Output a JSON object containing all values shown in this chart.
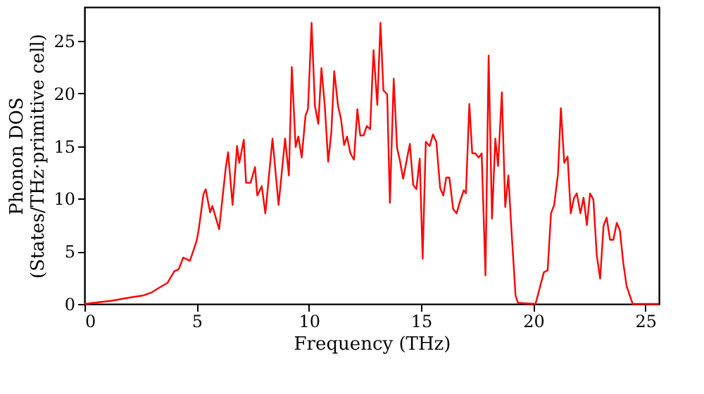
{
  "chart_data": {
    "type": "line",
    "xlabel": "Frequency (THz)",
    "ylabel": "Phonon DOS\n(States/THz·primitive cell)",
    "x": [
      0,
      1.2,
      2.0,
      2.6,
      3.0,
      3.3,
      3.7,
      4.0,
      4.2,
      4.4,
      4.7,
      5.0,
      5.1,
      5.3,
      5.4,
      5.6,
      5.7,
      6.0,
      6.3,
      6.4,
      6.6,
      6.8,
      6.9,
      7.1,
      7.2,
      7.4,
      7.6,
      7.7,
      7.9,
      8.06,
      8.38,
      8.65,
      8.94,
      9.11,
      9.24,
      9.41,
      9.53,
      9.68,
      9.85,
      9.96,
      10.12,
      10.27,
      10.42,
      10.56,
      10.71,
      10.86,
      11.0,
      11.13,
      11.3,
      11.43,
      11.57,
      11.7,
      11.85,
      12.01,
      12.16,
      12.29,
      12.44,
      12.58,
      12.73,
      12.88,
      13.05,
      13.19,
      13.32,
      13.49,
      13.61,
      13.78,
      13.93,
      14.05,
      14.2,
      14.5,
      14.65,
      14.79,
      14.94,
      15.07,
      15.21,
      15.38,
      15.53,
      15.68,
      15.85,
      15.99,
      16.12,
      16.26,
      16.43,
      16.58,
      16.73,
      16.9,
      17.0,
      17.15,
      17.28,
      17.42,
      17.57,
      17.7,
      17.87,
      18.01,
      18.16,
      18.31,
      18.43,
      18.6,
      18.75,
      18.89,
      19.04,
      19.21,
      19.32,
      20.1,
      20.47,
      20.64,
      20.79,
      20.93,
      21.1,
      21.23,
      21.38,
      21.53,
      21.67,
      21.82,
      21.94,
      22.1,
      22.24,
      22.39,
      22.53,
      22.68,
      22.83,
      22.98,
      23.13,
      23.27,
      23.42,
      23.57,
      23.72,
      23.86,
      24.01,
      24.16,
      24.43,
      25.6
    ],
    "series": [
      {
        "color": "#ff0000",
        "values": [
          0,
          0.3,
          0.6,
          0.8,
          1.1,
          1.5,
          2.0,
          3.1,
          3.3,
          4.4,
          4.1,
          6.0,
          7.2,
          10.4,
          10.9,
          8.7,
          9.3,
          7.1,
          13.0,
          14.4,
          9.4,
          15.0,
          13.4,
          15.6,
          11.5,
          11.5,
          13.0,
          10.3,
          11.2,
          8.6,
          15.7,
          9.4,
          15.7,
          12.2,
          22.5,
          14.9,
          15.9,
          13.9,
          17.9,
          18.5,
          26.7,
          18.8,
          17.1,
          22.4,
          18.8,
          13.5,
          16.3,
          22.1,
          18.8,
          17.6,
          15.1,
          15.9,
          14.3,
          13.7,
          18.5,
          16.0,
          16.0,
          16.9,
          16.6,
          24.1,
          18.9,
          26.7,
          20.3,
          19.9,
          9.6,
          21.4,
          14.8,
          13.7,
          11.9,
          15.2,
          11.3,
          10.9,
          13.8,
          4.3,
          15.4,
          15.0,
          16.1,
          15.4,
          11.0,
          10.3,
          12.0,
          12.0,
          9.0,
          8.6,
          9.7,
          10.8,
          10.5,
          19.0,
          14.3,
          14.3,
          13.9,
          14.3,
          2.7,
          23.6,
          8.1,
          15.7,
          13.1,
          20.1,
          9.2,
          12.2,
          6.6,
          0.8,
          0.1,
          0,
          3.0,
          3.2,
          8.6,
          9.4,
          12.3,
          18.6,
          13.4,
          14.0,
          8.6,
          10.1,
          10.5,
          8.6,
          10.1,
          7.5,
          10.5,
          9.9,
          4.6,
          2.4,
          7.4,
          8.2,
          6.1,
          6.1,
          7.7,
          7.0,
          3.9,
          1.7,
          0,
          0
        ]
      }
    ],
    "xlim": [
      0,
      25.6
    ],
    "ylim": [
      0,
      28.2
    ],
    "xticks": [
      0,
      5,
      10,
      15,
      20,
      25
    ],
    "yticks": [
      0,
      5,
      10,
      15,
      20,
      25
    ],
    "grid": false
  }
}
